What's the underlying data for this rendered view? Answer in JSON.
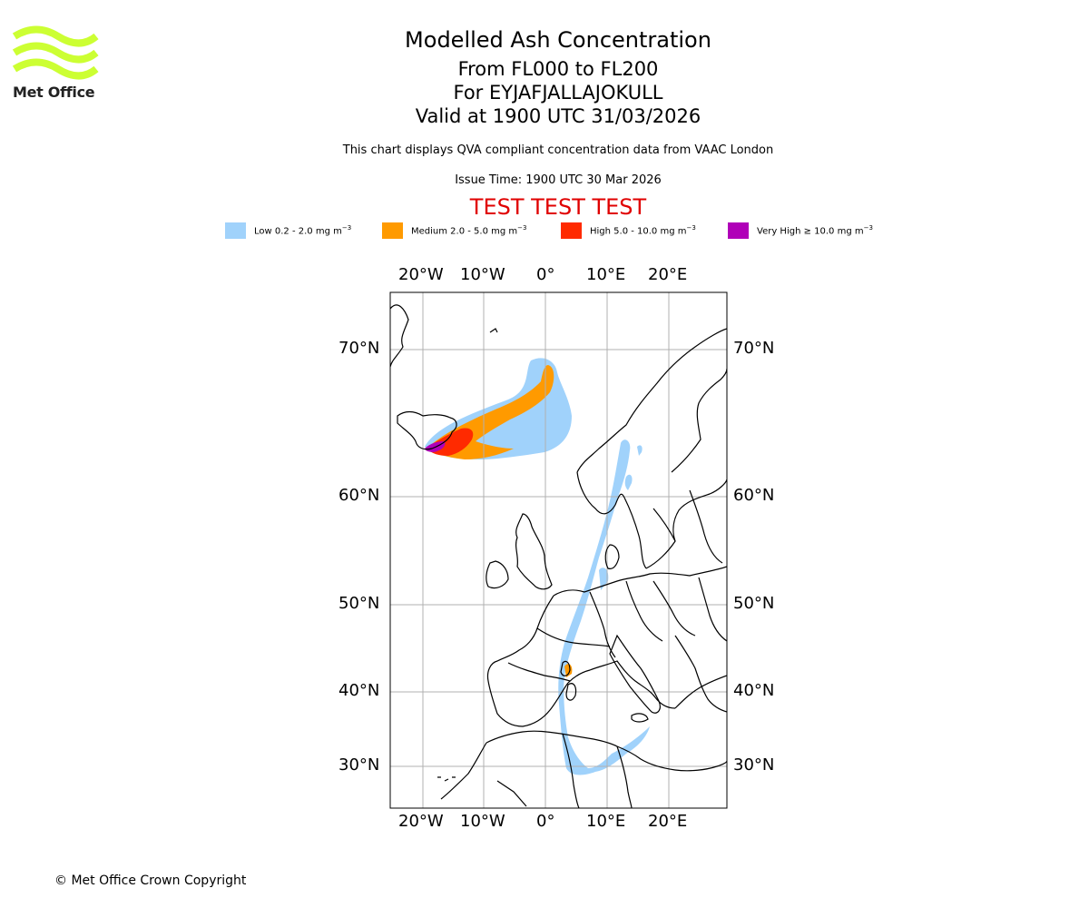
{
  "header": {
    "logo_text": "Met Office",
    "title": "Modelled Ash Concentration",
    "level_range": "From FL000 to FL200",
    "volcano": "For EYJAFJALLAJOKULL",
    "valid_time": "Valid at 1900 UTC 31/03/2026",
    "description": "This chart displays QVA compliant concentration data from VAAC London",
    "issue_time": "Issue Time: 1900 UTC 30 Mar 2026",
    "test_banner": "TEST TEST TEST"
  },
  "legend": [
    {
      "label": "Low 0.2 - 2.0 mg m",
      "unit_exp": "−3",
      "color": "#a0d2fb"
    },
    {
      "label": "Medium 2.0 - 5.0 mg m",
      "unit_exp": "−3",
      "color": "#ff9a00"
    },
    {
      "label": "High 5.0 - 10.0 mg m",
      "unit_exp": "−3",
      "color": "#ff2a00"
    },
    {
      "label": "Very High  ≥  10.0 mg m",
      "unit_exp": "−3",
      "color": "#b000b8"
    }
  ],
  "map": {
    "lon_ticks": [
      {
        "value": -20,
        "label": "20°W"
      },
      {
        "value": -10,
        "label": "10°W"
      },
      {
        "value": 0,
        "label": "0°"
      },
      {
        "value": 10,
        "label": "10°E"
      },
      {
        "value": 20,
        "label": "20°E"
      }
    ],
    "lat_ticks": [
      {
        "value": 70,
        "label": "70°N"
      },
      {
        "value": 60,
        "label": "60°N"
      },
      {
        "value": 50,
        "label": "50°N"
      },
      {
        "value": 40,
        "label": "40°N"
      },
      {
        "value": 30,
        "label": "30°N"
      }
    ],
    "colors": {
      "low": "#a0d2fb",
      "medium": "#ff9a00",
      "high": "#ff2a00",
      "very_high": "#b000b8",
      "logo": "#ccff33"
    }
  },
  "footer": {
    "copyright": "© Met Office Crown Copyright"
  }
}
